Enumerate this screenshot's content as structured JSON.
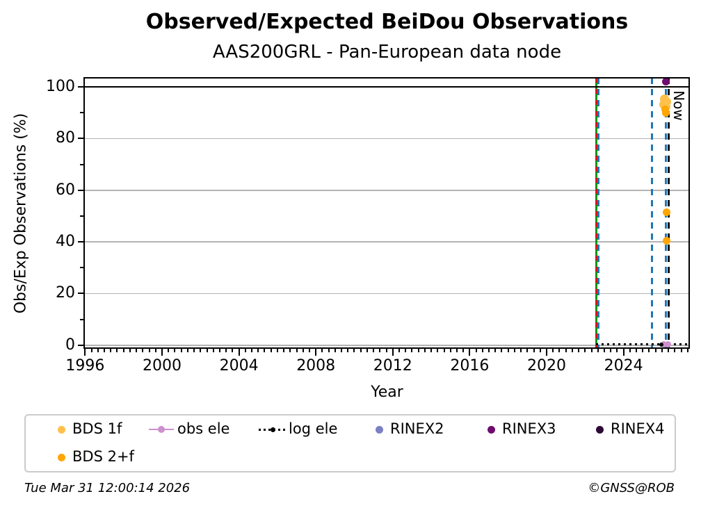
{
  "chart_data": {
    "type": "scatter",
    "title": "Observed/Expected BeiDou Observations",
    "subtitle": "AAS200GRL - Pan-European data node",
    "xlabel": "Year",
    "ylabel": "Obs/Exp Observations (%)",
    "xlim": [
      1995.95,
      2027.45
    ],
    "ylim": [
      -1.4,
      103.5
    ],
    "xticks": [
      1996,
      2000,
      2004,
      2008,
      2012,
      2016,
      2020,
      2024
    ],
    "yticks": [
      0,
      20,
      40,
      60,
      80,
      100
    ],
    "grid": "horizontal-gray",
    "reference_hline": {
      "y": 100,
      "color": "#000000"
    },
    "series": [
      {
        "name": "BDS 1f",
        "color": "#FFC14A",
        "marker": "circle",
        "msize": 13,
        "points": [
          [
            2026.13,
            95.3
          ],
          [
            2026.24,
            94.3
          ],
          [
            2026.1,
            93.2
          ],
          [
            2026.2,
            92.3
          ]
        ]
      },
      {
        "name": "BDS 2+f",
        "color": "#FFA602",
        "marker": "circle",
        "msize": 11,
        "points": [
          [
            2026.18,
            91.2
          ],
          [
            2026.2,
            89.8
          ],
          [
            2026.24,
            51.5
          ],
          [
            2026.24,
            40.5
          ]
        ]
      },
      {
        "name": "obs ele",
        "color": "#CD90CD",
        "marker": "circle-line",
        "msize": 9,
        "points": [
          [
            2026.08,
            0.3
          ],
          [
            2026.3,
            0.3
          ]
        ]
      },
      {
        "name": "log ele",
        "color": "#000000",
        "marker": "dotted-line",
        "msize": 6,
        "line": {
          "x0": 2022.58,
          "x1": 2027.32,
          "y": 0.3
        },
        "points": [
          [
            2025.95,
            0.3
          ]
        ]
      },
      {
        "name": "RINEX2",
        "color": "#7B7FC4",
        "marker": "circle",
        "msize": 11,
        "points": []
      },
      {
        "name": "RINEX3",
        "color": "#6E0D6E",
        "marker": "circle",
        "msize": 11,
        "points": [
          [
            2026.2,
            101.9
          ]
        ]
      },
      {
        "name": "RINEX4",
        "color": "#2E0935",
        "marker": "circle",
        "msize": 11,
        "points": []
      }
    ],
    "vlines": [
      {
        "x": 2022.58,
        "style": "solid",
        "color": "#0A960A",
        "overlay_dash_color": "#DC1414"
      },
      {
        "x": 2022.7,
        "style": "dashed",
        "color": "#1F77B4"
      },
      {
        "x": 2025.47,
        "style": "dashed",
        "color": "#1F77B4"
      },
      {
        "x": 2026.19,
        "style": "dashed",
        "color": "#1F77B4"
      },
      {
        "x": 2026.33,
        "style": "dashed",
        "color": "#000000",
        "label": "Now"
      }
    ],
    "legend": {
      "position": "bottom",
      "items": [
        {
          "label": "BDS 1f",
          "color": "#FFC14A",
          "marker": "dot",
          "row": 0,
          "col": 0
        },
        {
          "label": "obs ele",
          "color": "#CD90CD",
          "marker": "dot-line",
          "row": 0,
          "col": 1
        },
        {
          "label": "log ele",
          "color": "#000000",
          "marker": "dotted-line-dot",
          "row": 0,
          "col": 2
        },
        {
          "label": "RINEX2",
          "color": "#7B7FC4",
          "marker": "dot",
          "row": 0,
          "col": 3
        },
        {
          "label": "RINEX3",
          "color": "#6E0D6E",
          "marker": "dot",
          "row": 0,
          "col": 4
        },
        {
          "label": "RINEX4",
          "color": "#2E0935",
          "marker": "dot",
          "row": 0,
          "col": 5
        },
        {
          "label": "BDS 2+f",
          "color": "#FFA602",
          "marker": "dot",
          "row": 1,
          "col": 0
        }
      ]
    }
  },
  "texts": {
    "footer_left": "Tue Mar 31 12:00:14 2026",
    "footer_right": "©GNSS@ROB"
  }
}
